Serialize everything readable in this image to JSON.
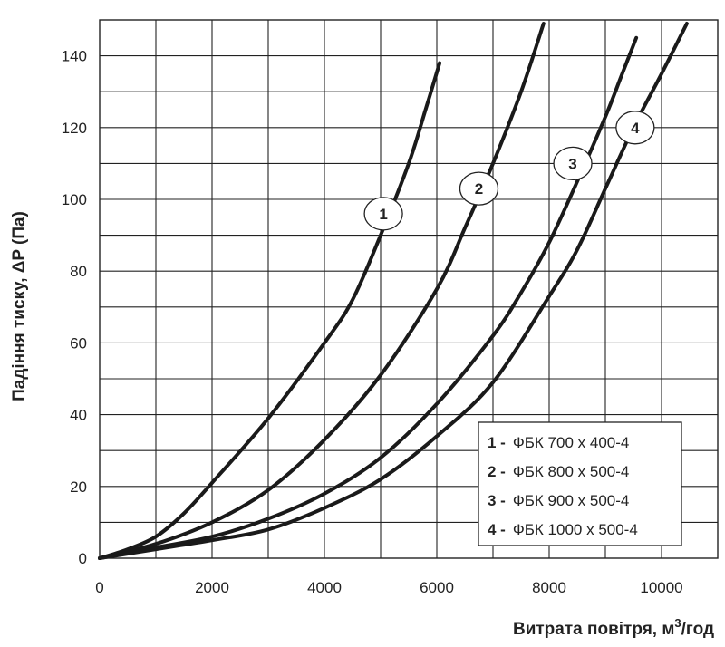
{
  "chart_data": {
    "type": "line",
    "xlabel_main": "Витрата повітря, м",
    "xlabel_sup": "3",
    "xlabel_end": "/год",
    "ylabel": "Падіння тиску, ΔP (Па)",
    "xlim": [
      0,
      11000
    ],
    "ylim": [
      0,
      150
    ],
    "x_ticks": [
      0,
      2000,
      4000,
      6000,
      8000,
      10000
    ],
    "y_ticks": [
      0,
      20,
      40,
      60,
      80,
      100,
      120,
      140
    ],
    "x_grid_step": 1000,
    "y_grid_step": 10,
    "grid": true,
    "legend_position": "bottom-right",
    "series": [
      {
        "name": "ФБК 700x400-4",
        "legend_num": "1",
        "legend_label": "ФБК  700 x 400-4",
        "curve_label": "1",
        "label_at": [
          5050,
          96
        ],
        "points": [
          [
            0,
            0
          ],
          [
            500,
            2.5
          ],
          [
            1000,
            6
          ],
          [
            1500,
            12.5
          ],
          [
            2000,
            21
          ],
          [
            3000,
            39
          ],
          [
            4000,
            60
          ],
          [
            4500,
            72
          ],
          [
            5000,
            90
          ],
          [
            5500,
            110
          ],
          [
            5800,
            125
          ],
          [
            6050,
            138
          ]
        ]
      },
      {
        "name": "ФБК 800x500-4",
        "legend_num": "2",
        "legend_label": "ФБК  800 x 500-4",
        "curve_label": "2",
        "label_at": [
          6750,
          103
        ],
        "points": [
          [
            0,
            0
          ],
          [
            1000,
            4
          ],
          [
            2000,
            10
          ],
          [
            3000,
            19
          ],
          [
            4000,
            33
          ],
          [
            5000,
            51
          ],
          [
            6000,
            75
          ],
          [
            6500,
            92
          ],
          [
            7000,
            110
          ],
          [
            7500,
            130
          ],
          [
            7900,
            149
          ]
        ]
      },
      {
        "name": "ФБК 900x500-4",
        "legend_num": "3",
        "legend_label": "ФБК  900 x 500-4",
        "curve_label": "3",
        "label_at": [
          8420,
          110
        ],
        "points": [
          [
            0,
            0
          ],
          [
            1000,
            3
          ],
          [
            2000,
            6
          ],
          [
            3000,
            11
          ],
          [
            4000,
            18
          ],
          [
            5000,
            28
          ],
          [
            6000,
            43
          ],
          [
            7000,
            62
          ],
          [
            7500,
            74
          ],
          [
            8000,
            88
          ],
          [
            8500,
            105
          ],
          [
            9000,
            123
          ],
          [
            9300,
            135
          ],
          [
            9550,
            145
          ]
        ]
      },
      {
        "name": "ФБК 1000x500-4",
        "legend_num": "4",
        "legend_label": "ФБК  1000 x 500-4",
        "curve_label": "4",
        "label_at": [
          9530,
          120
        ],
        "points": [
          [
            0,
            0
          ],
          [
            1000,
            2.5
          ],
          [
            2000,
            5
          ],
          [
            3000,
            8
          ],
          [
            4000,
            14
          ],
          [
            5000,
            22
          ],
          [
            6000,
            34
          ],
          [
            7000,
            49
          ],
          [
            8000,
            73
          ],
          [
            8500,
            86
          ],
          [
            9000,
            103
          ],
          [
            9500,
            120
          ],
          [
            10000,
            135
          ],
          [
            10450,
            149
          ]
        ]
      }
    ]
  }
}
